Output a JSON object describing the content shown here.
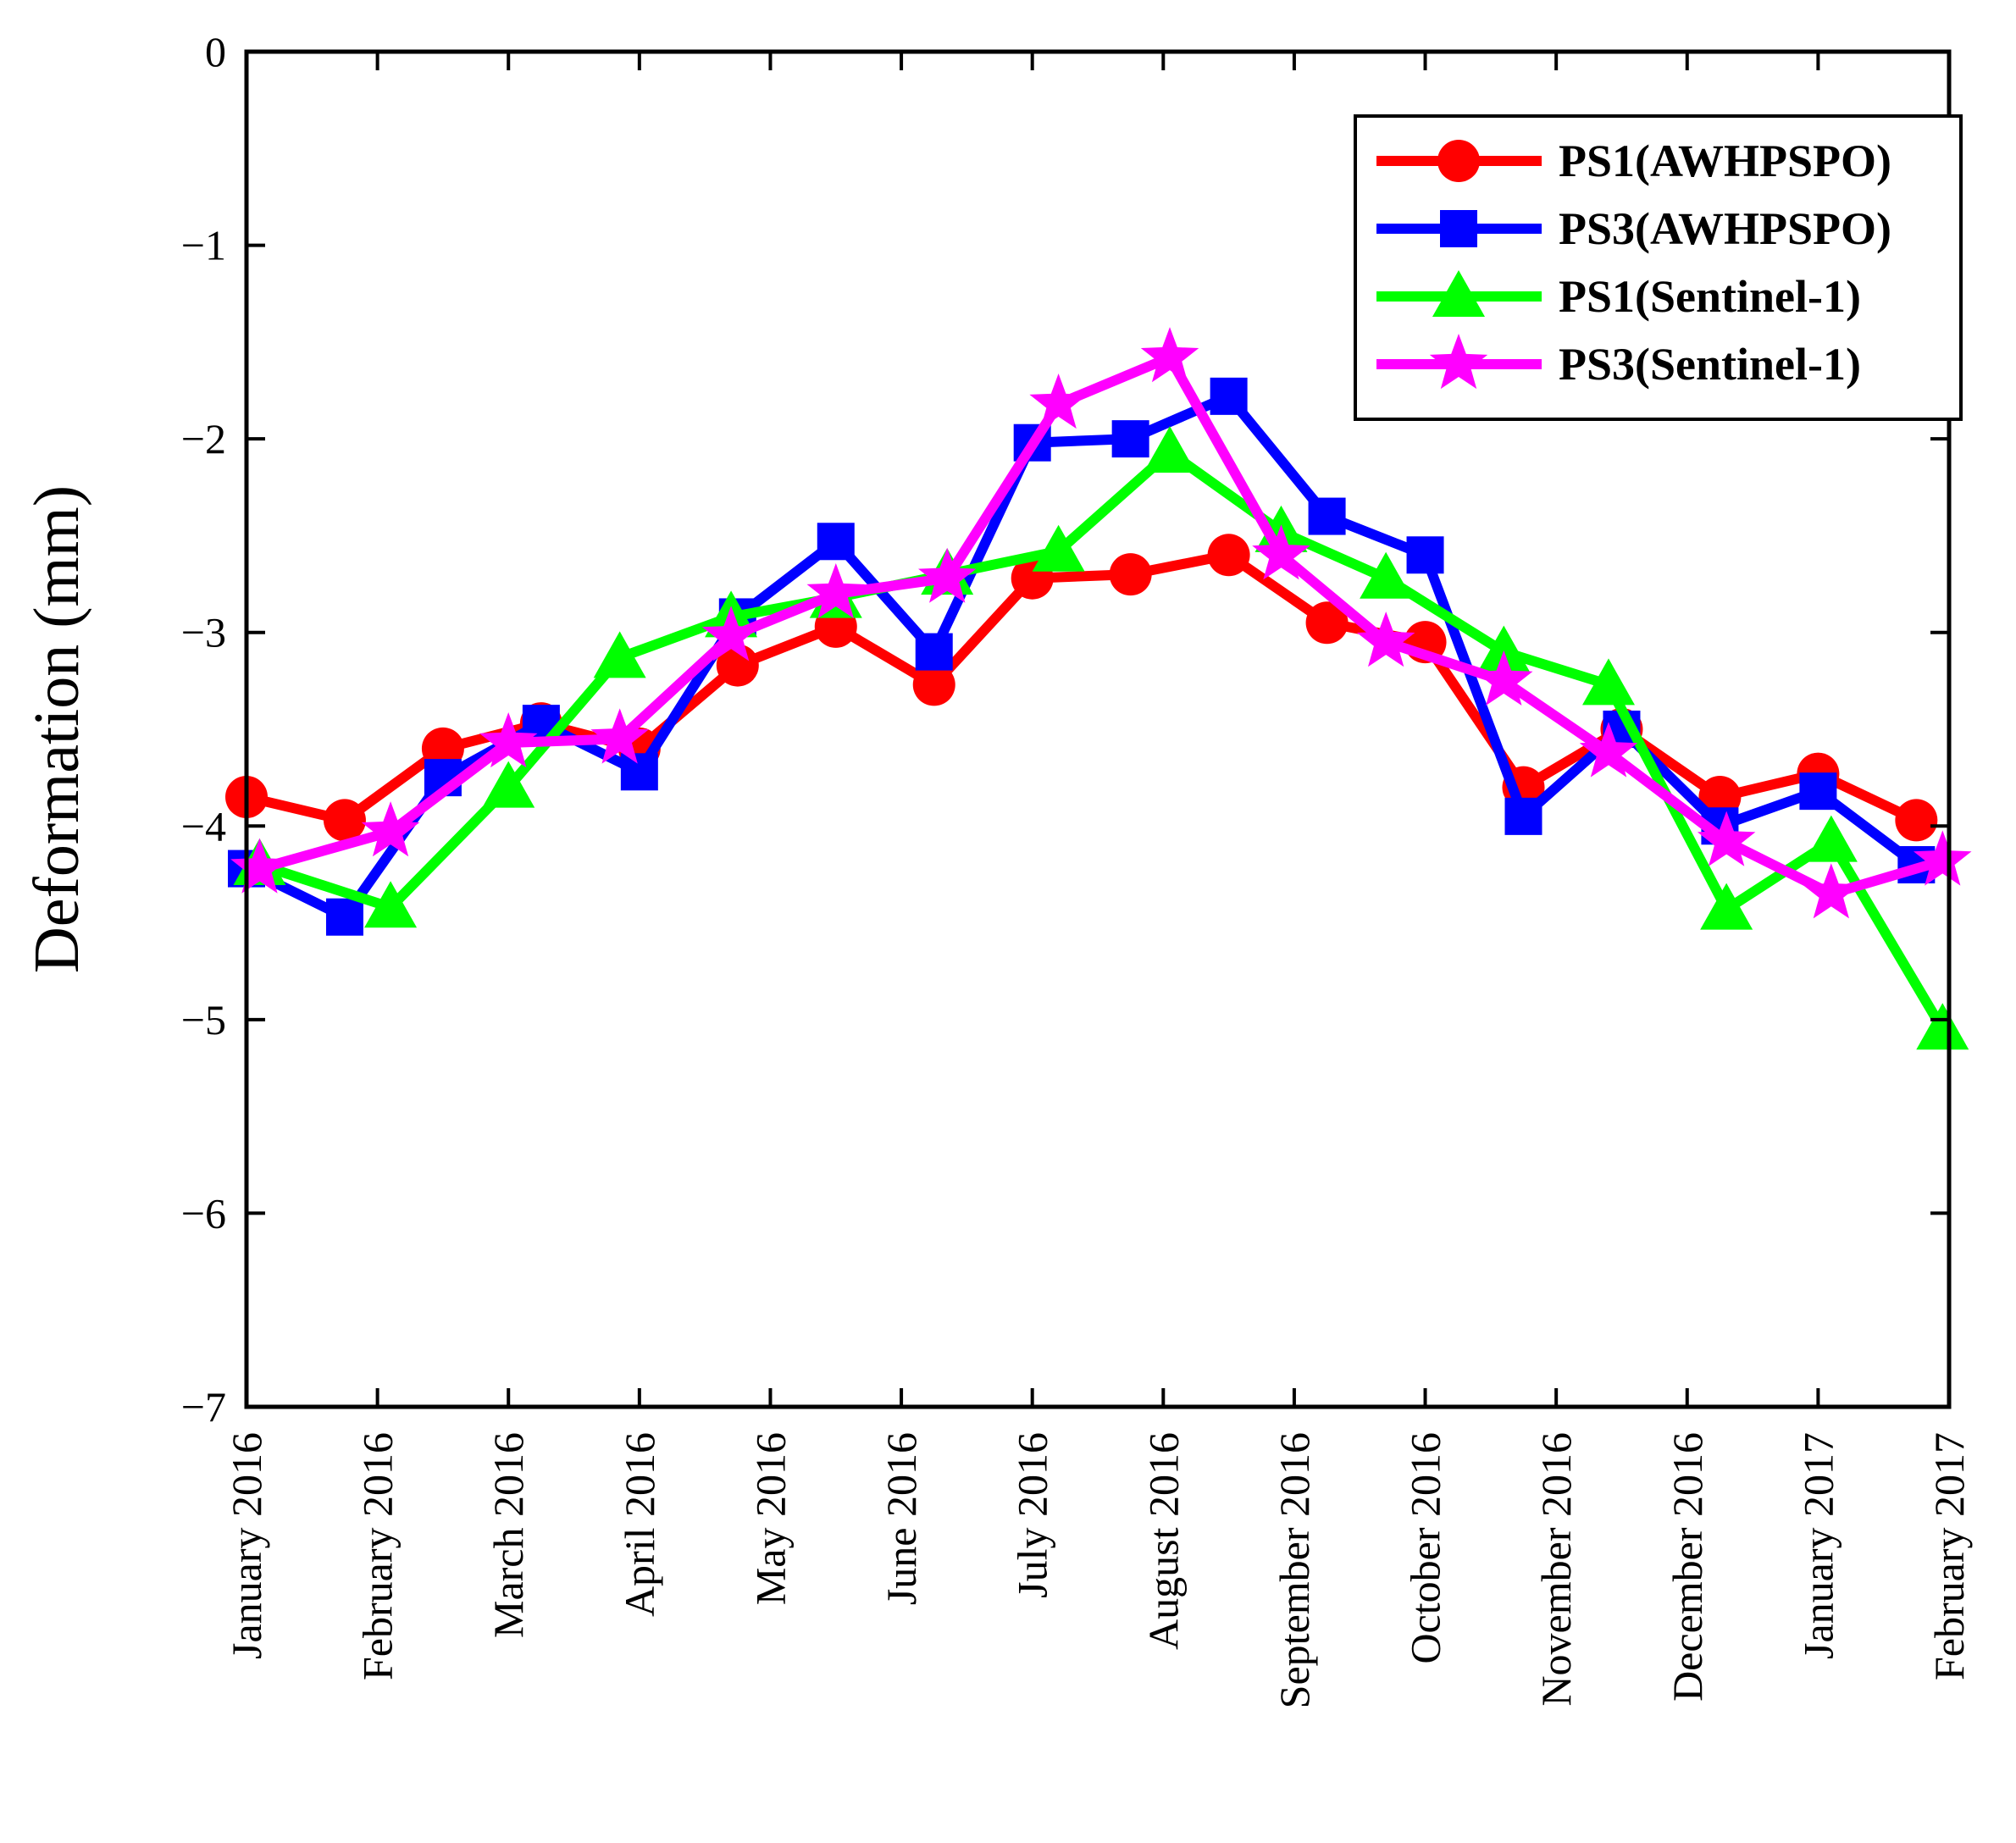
{
  "chart_data": {
    "type": "line",
    "title": "",
    "xlabel": "",
    "ylabel": "Deformation (mm)",
    "ylim": [
      -7,
      0
    ],
    "yticks": [
      0,
      -1,
      -2,
      -3,
      -4,
      -5,
      -6,
      -7
    ],
    "ytick_labels": [
      "0",
      "−1",
      "−2",
      "−3",
      "−4",
      "−5",
      "−6",
      "−7"
    ],
    "xlim": [
      0,
      13
    ],
    "x_tick_labels": [
      "January 2016",
      "February 2016",
      "March 2016",
      "April 2016",
      "May 2016",
      "June 2016",
      "July 2016",
      "August 2016",
      "September 2016",
      "October 2016",
      "November 2016",
      "December 2016",
      "January 2017",
      "February 2017"
    ],
    "grid": false,
    "legend_position": "top-right",
    "series": [
      {
        "name": "PS1(AWHPSPO)",
        "color": "#ff0000",
        "marker": "circle",
        "x": [
          0,
          0.75,
          1.5,
          2.25,
          3.0,
          3.75,
          4.5,
          5.25,
          6.0,
          6.75,
          7.5,
          8.25,
          9.0,
          9.75,
          10.5,
          11.25,
          12.0,
          12.75
        ],
        "y": [
          -3.85,
          -3.97,
          -3.6,
          -3.47,
          -3.6,
          -3.17,
          -2.97,
          -3.27,
          -2.72,
          -2.7,
          -2.6,
          -2.95,
          -3.05,
          -3.8,
          -3.5,
          -3.85,
          -3.73,
          -3.97
        ]
      },
      {
        "name": "PS3(AWHPSPO)",
        "color": "#0000ff",
        "marker": "square",
        "x": [
          0,
          0.75,
          1.5,
          2.25,
          3.0,
          3.75,
          4.5,
          5.25,
          6.0,
          6.75,
          7.5,
          8.25,
          9.0,
          9.75,
          10.5,
          11.25,
          12.0,
          12.75
        ],
        "y": [
          -4.22,
          -4.47,
          -3.75,
          -3.47,
          -3.72,
          -2.92,
          -2.53,
          -3.1,
          -2.02,
          -2.0,
          -1.78,
          -2.4,
          -2.6,
          -3.95,
          -3.5,
          -4.0,
          -3.82,
          -4.2
        ]
      },
      {
        "name": "PS1(Sentinel-1)",
        "color": "#00ff00",
        "marker": "triangle",
        "x": [
          0.1,
          1.1,
          2.0,
          2.85,
          3.7,
          4.5,
          5.35,
          6.2,
          7.05,
          7.9,
          8.7,
          9.6,
          10.4,
          11.3,
          12.1,
          12.95
        ],
        "y": [
          -4.2,
          -4.42,
          -3.8,
          -3.13,
          -2.92,
          -2.82,
          -2.7,
          -2.58,
          -2.07,
          -2.48,
          -2.72,
          -3.1,
          -3.27,
          -4.43,
          -4.08,
          -5.05
        ]
      },
      {
        "name": "PS3(Sentinel-1)",
        "color": "#ff00ff",
        "marker": "star",
        "x": [
          0.1,
          1.1,
          2.0,
          2.85,
          3.7,
          4.5,
          5.35,
          6.2,
          7.05,
          7.9,
          8.7,
          9.6,
          10.4,
          11.3,
          12.1,
          12.95
        ],
        "y": [
          -4.22,
          -4.03,
          -3.57,
          -3.55,
          -3.02,
          -2.8,
          -2.72,
          -1.82,
          -1.58,
          -2.6,
          -3.05,
          -3.25,
          -3.62,
          -4.08,
          -4.35,
          -4.18
        ]
      }
    ]
  }
}
